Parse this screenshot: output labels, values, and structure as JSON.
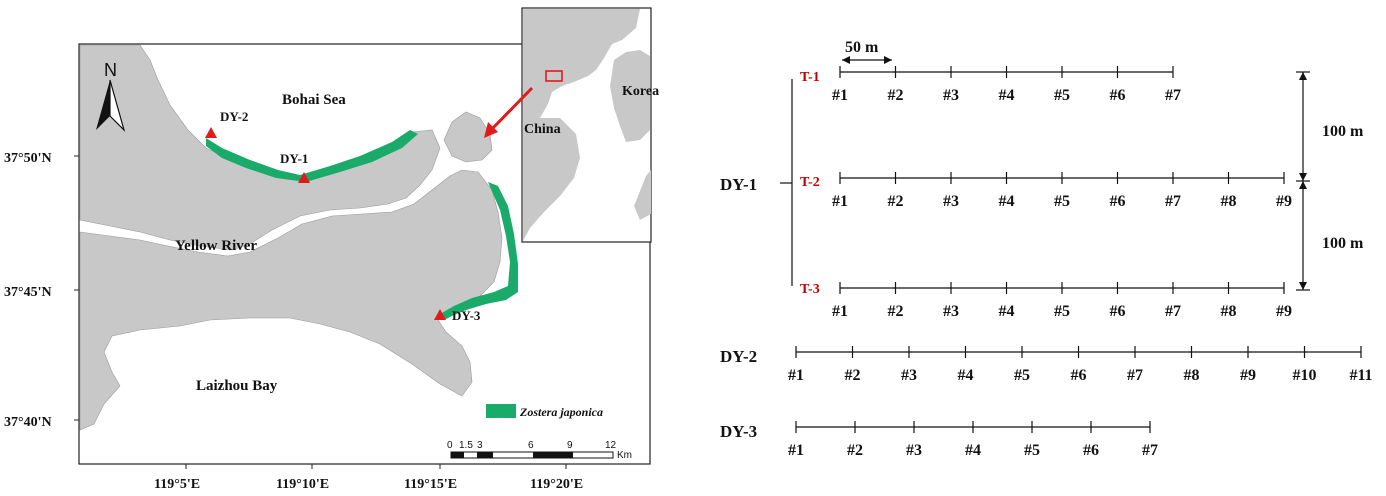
{
  "map": {
    "north_label": "N",
    "places": {
      "bohai_sea": "Bohai Sea",
      "yellow_river": "Yellow River",
      "laizhou_bay": "Laizhou Bay",
      "china": "China",
      "korea": "Korea"
    },
    "sites": {
      "dy1": "DY-1",
      "dy2": "DY-2",
      "dy3": "DY-3"
    },
    "lat_labels": [
      "37°50'N",
      "37°45'N",
      "37°40'N"
    ],
    "lon_labels": [
      "119°5'E",
      "119°10'E",
      "119°15'E",
      "119°20'E"
    ],
    "legend_label": "Zostera japonica",
    "scale_labels": [
      "0",
      "1.5",
      "3",
      "6",
      "9",
      "12"
    ],
    "scale_unit": "Km",
    "colors": {
      "land": "#c8c8c8",
      "seagrass": "#1aaa6a",
      "site": "#e31a1c",
      "inset_box": "#e31a1c",
      "arrow": "#e31a1c"
    }
  },
  "transects": {
    "distance_50": "50 m",
    "distance_100a": "100 m",
    "distance_100b": "100 m",
    "dy1": {
      "label": "DY-1",
      "rows": [
        {
          "label": "T-1",
          "points": [
            "#1",
            "#2",
            "#3",
            "#4",
            "#5",
            "#6",
            "#7"
          ]
        },
        {
          "label": "T-2",
          "points": [
            "#1",
            "#2",
            "#3",
            "#4",
            "#5",
            "#6",
            "#7",
            "#8",
            "#9"
          ]
        },
        {
          "label": "T-3",
          "points": [
            "#1",
            "#2",
            "#3",
            "#4",
            "#5",
            "#6",
            "#7",
            "#8",
            "#9"
          ]
        }
      ]
    },
    "dy2": {
      "label": "DY-2",
      "points": [
        "#1",
        "#2",
        "#3",
        "#4",
        "#5",
        "#6",
        "#7",
        "#8",
        "#9",
        "#10",
        "#11"
      ]
    },
    "dy3": {
      "label": "DY-3",
      "points": [
        "#1",
        "#2",
        "#3",
        "#4",
        "#5",
        "#6",
        "#7"
      ]
    },
    "colors": {
      "transect_label": "#c00000"
    }
  }
}
